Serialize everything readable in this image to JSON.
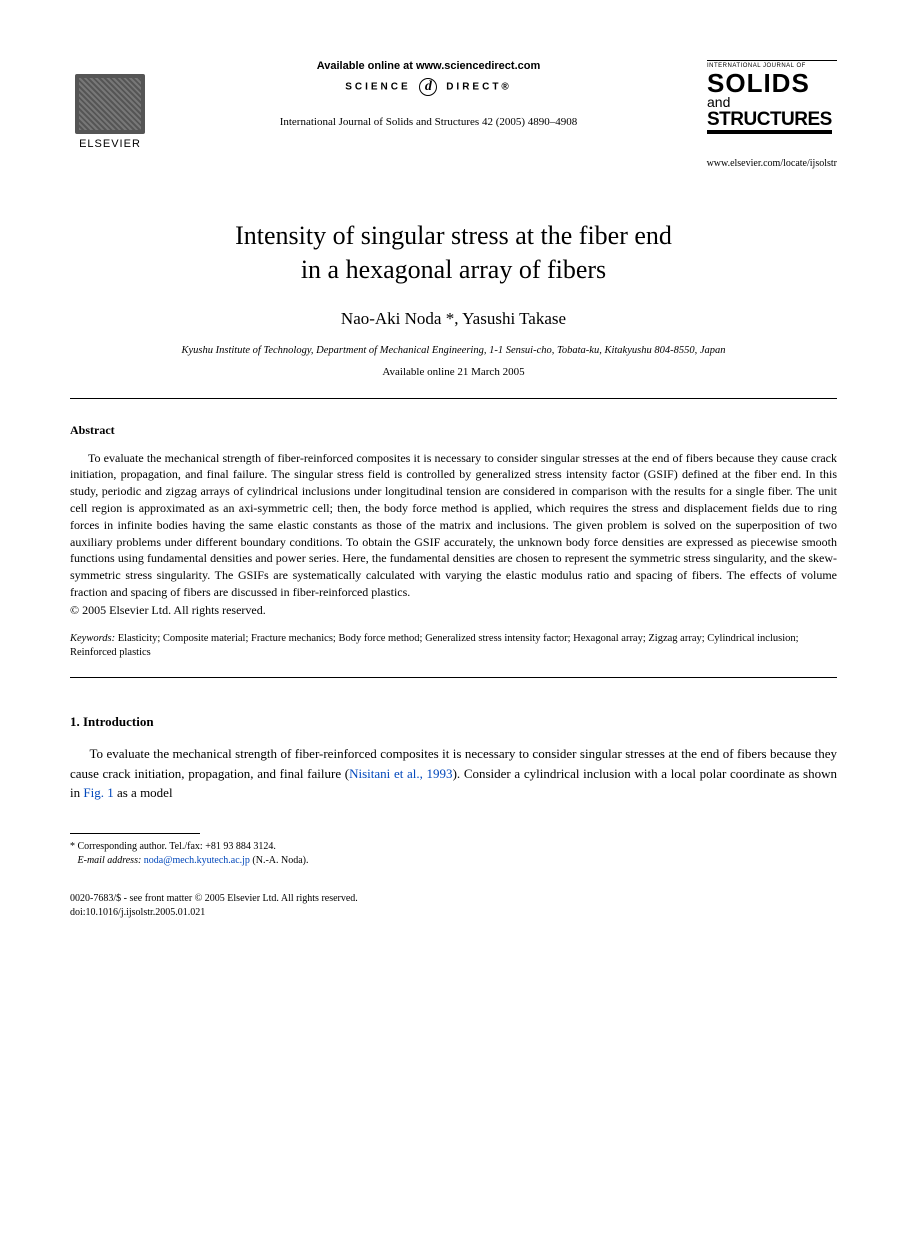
{
  "header": {
    "elsevier": "ELSEVIER",
    "available_online": "Available online at www.sciencedirect.com",
    "science": "SCIENCE",
    "direct": "DIRECT®",
    "citation": "International Journal of Solids and Structures 42 (2005) 4890–4908",
    "journal_intl": "INTERNATIONAL JOURNAL OF",
    "journal_solids": "SOLIDS",
    "journal_and": "and",
    "journal_structures": "STRUCTURES",
    "journal_url": "www.elsevier.com/locate/ijsolstr"
  },
  "title_line1": "Intensity of singular stress at the fiber end",
  "title_line2": "in a hexagonal array of fibers",
  "authors": "Nao-Aki Noda *, Yasushi Takase",
  "affiliation": "Kyushu Institute of Technology, Department of Mechanical Engineering, 1-1 Sensui-cho, Tobata-ku, Kitakyushu 804-8550, Japan",
  "available_date": "Available online 21 March 2005",
  "abstract_heading": "Abstract",
  "abstract_body": "To evaluate the mechanical strength of fiber-reinforced composites it is necessary to consider singular stresses at the end of fibers because they cause crack initiation, propagation, and final failure. The singular stress field is controlled by generalized stress intensity factor (GSIF) defined at the fiber end. In this study, periodic and zigzag arrays of cylindrical inclusions under longitudinal tension are considered in comparison with the results for a single fiber. The unit cell region is approximated as an axi-symmetric cell; then, the body force method is applied, which requires the stress and displacement fields due to ring forces in infinite bodies having the same elastic constants as those of the matrix and inclusions. The given problem is solved on the superposition of two auxiliary problems under different boundary conditions. To obtain the GSIF accurately, the unknown body force densities are expressed as piecewise smooth functions using fundamental densities and power series. Here, the fundamental densities are chosen to represent the symmetric stress singularity, and the skew-symmetric stress singularity. The GSIFs are systematically calculated with varying the elastic modulus ratio and spacing of fibers. The effects of volume fraction and spacing of fibers are discussed in fiber-reinforced plastics.",
  "copyright": "© 2005 Elsevier Ltd. All rights reserved.",
  "keywords_label": "Keywords:",
  "keywords": " Elasticity; Composite material; Fracture mechanics; Body force method; Generalized stress intensity factor; Hexagonal array; Zigzag array; Cylindrical inclusion; Reinforced plastics",
  "section1_heading": "1. Introduction",
  "intro_pre": "To evaluate the mechanical strength of fiber-reinforced composites it is necessary to consider singular stresses at the end of fibers because they cause crack initiation, propagation, and final failure (",
  "intro_cite1": "Nisitani et al., 1993",
  "intro_mid": "). Consider a cylindrical inclusion with a local polar coordinate as shown in ",
  "intro_cite2": "Fig. 1",
  "intro_post": " as a model",
  "footnote_corr": "* Corresponding author. Tel./fax: +81 93 884 3124.",
  "footnote_email_label": "E-mail address:",
  "footnote_email": "noda@mech.kyutech.ac.jp",
  "footnote_email_suffix": " (N.-A. Noda).",
  "footer_line1": "0020-7683/$ - see front matter © 2005 Elsevier Ltd. All rights reserved.",
  "footer_line2": "doi:10.1016/j.ijsolstr.2005.01.021"
}
